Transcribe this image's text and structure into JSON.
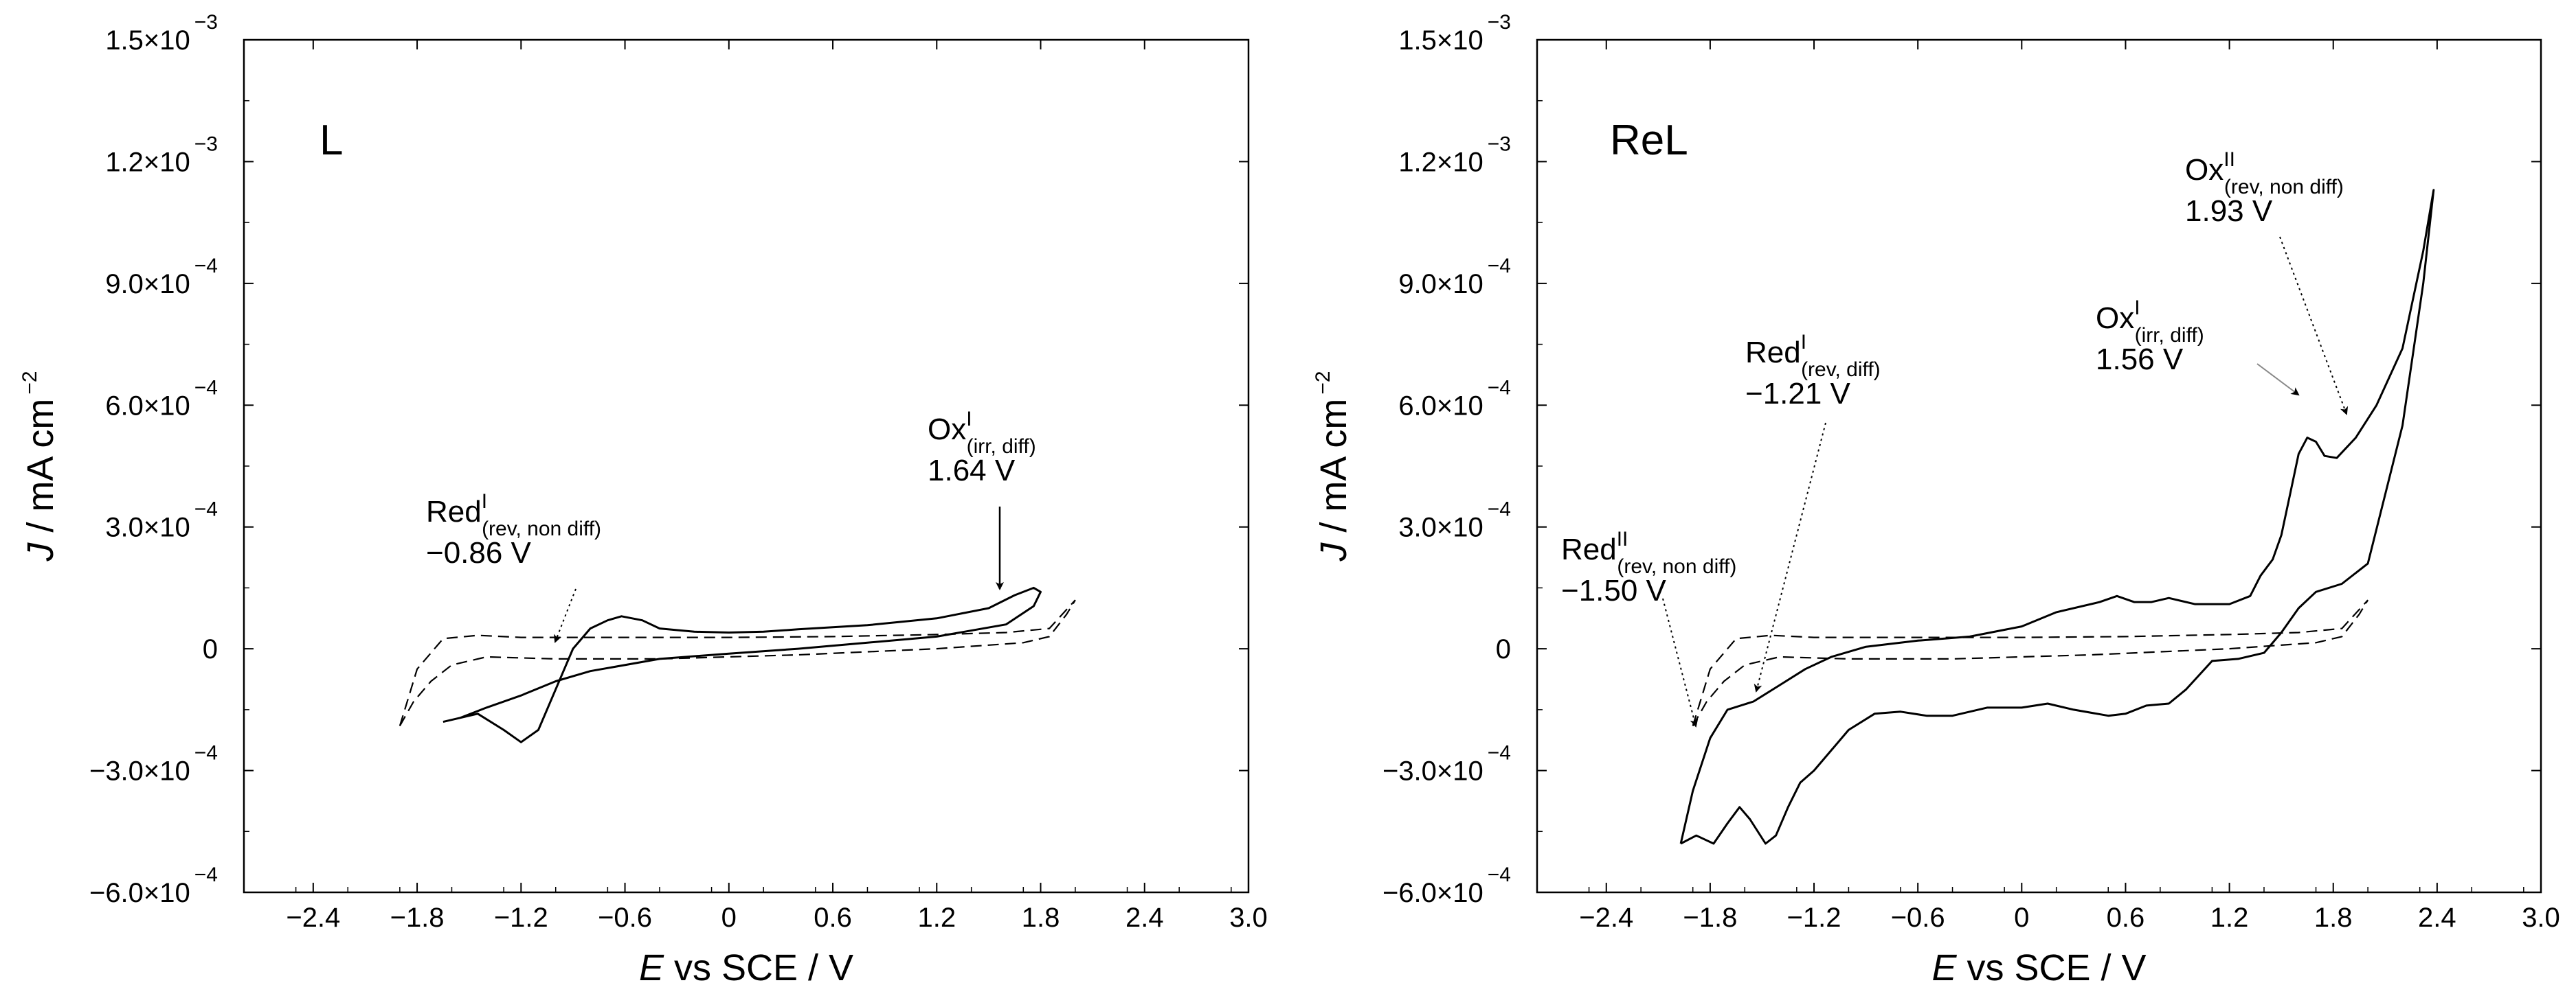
{
  "chart_data": [
    {
      "type": "line",
      "panel_label": "L",
      "xlabel": {
        "italic": "E",
        "rest": " vs SCE / V"
      },
      "ylabel": {
        "italic": "J",
        "rest": " / mA cm",
        "exp": "−2"
      },
      "xlim": [
        -2.8,
        3.0
      ],
      "ylim": [
        -0.0006,
        0.0015
      ],
      "xticks": [
        {
          "v": -2.4,
          "label": "−2.4"
        },
        {
          "v": -1.8,
          "label": "−1.8"
        },
        {
          "v": -1.2,
          "label": "−1.2"
        },
        {
          "v": -0.6,
          "label": "−0.6"
        },
        {
          "v": 0,
          "label": "0"
        },
        {
          "v": 0.6,
          "label": "0.6"
        },
        {
          "v": 1.2,
          "label": "1.2"
        },
        {
          "v": 1.8,
          "label": "1.8"
        },
        {
          "v": 2.4,
          "label": "2.4"
        },
        {
          "v": 3.0,
          "label": "3.0"
        }
      ],
      "yticks": [
        {
          "v": -0.0006,
          "mant": "−6.0×10",
          "exp": "−4"
        },
        {
          "v": -0.0003,
          "mant": "−3.0×10",
          "exp": "−4"
        },
        {
          "v": 0,
          "mant": "0",
          "exp": ""
        },
        {
          "v": 0.0003,
          "mant": "3.0×10",
          "exp": "−4"
        },
        {
          "v": 0.0006,
          "mant": "6.0×10",
          "exp": "−4"
        },
        {
          "v": 0.0009,
          "mant": "9.0×10",
          "exp": "−4"
        },
        {
          "v": 0.0012,
          "mant": "1.2×10",
          "exp": "−3"
        },
        {
          "v": 0.0015,
          "mant": "1.5×10",
          "exp": "−3"
        }
      ],
      "series": [
        {
          "name": "L (solid)",
          "style": "solid",
          "points": [
            [
              -1.65,
              -0.00018
            ],
            [
              -1.45,
              -0.00016
            ],
            [
              -1.3,
              -0.0002
            ],
            [
              -1.2,
              -0.00023
            ],
            [
              -1.1,
              -0.0002
            ],
            [
              -1.0,
              -0.0001
            ],
            [
              -0.9,
              0.0
            ],
            [
              -0.8,
              5e-05
            ],
            [
              -0.7,
              7e-05
            ],
            [
              -0.62,
              8e-05
            ],
            [
              -0.5,
              7e-05
            ],
            [
              -0.4,
              5e-05
            ],
            [
              -0.2,
              4.2e-05
            ],
            [
              0.0,
              4e-05
            ],
            [
              0.2,
              4.2e-05
            ],
            [
              0.4,
              4.8e-05
            ],
            [
              0.8,
              5.8e-05
            ],
            [
              1.2,
              7.5e-05
            ],
            [
              1.5,
              0.0001
            ],
            [
              1.65,
              0.000132
            ],
            [
              1.76,
              0.00015
            ],
            [
              1.8,
              0.00014
            ],
            [
              1.76,
              0.000105
            ],
            [
              1.6,
              6e-05
            ],
            [
              1.2,
              3e-05
            ],
            [
              0.8,
              1.5e-05
            ],
            [
              0.4,
              0.0
            ],
            [
              0.0,
              -1.2e-05
            ],
            [
              -0.4,
              -2.5e-05
            ],
            [
              -0.8,
              -5.5e-05
            ],
            [
              -1.0,
              -8e-05
            ],
            [
              -1.2,
              -0.000115
            ],
            [
              -1.4,
              -0.000145
            ],
            [
              -1.55,
              -0.00017
            ],
            [
              -1.65,
              -0.00018
            ]
          ]
        },
        {
          "name": "L (dashed, 1)",
          "style": "dashed",
          "points": [
            [
              -1.9,
              -0.00019
            ],
            [
              -1.82,
              -0.00013
            ],
            [
              -1.72,
              -8e-05
            ],
            [
              -1.6,
              -4e-05
            ],
            [
              -1.4,
              -2e-05
            ],
            [
              -1.0,
              -2.5e-05
            ],
            [
              -0.4,
              -2.5e-05
            ],
            [
              0.4,
              -1.5e-05
            ],
            [
              1.2,
              0.0
            ],
            [
              1.7,
              1.5e-05
            ],
            [
              1.85,
              3e-05
            ],
            [
              1.95,
              8.5e-05
            ],
            [
              2.0,
              0.00012
            ]
          ]
        },
        {
          "name": "L (dashed, 2)",
          "style": "dashed",
          "points": [
            [
              -1.9,
              -0.00019
            ],
            [
              -1.8,
              -5e-05
            ],
            [
              -1.65,
              2.5e-05
            ],
            [
              -1.45,
              3.3e-05
            ],
            [
              -1.2,
              2.8e-05
            ],
            [
              -0.6,
              2.8e-05
            ],
            [
              0.0,
              2.8e-05
            ],
            [
              0.6,
              3e-05
            ],
            [
              1.2,
              3.5e-05
            ],
            [
              1.6,
              4e-05
            ],
            [
              1.85,
              5e-05
            ],
            [
              2.0,
              0.00012
            ]
          ]
        }
      ],
      "annotations": [
        {
          "main": "Ox",
          "sup": "I",
          "sub": "(irr, diff)",
          "value": "1.64 V"
        },
        {
          "main": "Red",
          "sup": "I",
          "sub": "(rev, non diff)",
          "value": "−0.86 V"
        }
      ]
    },
    {
      "type": "line",
      "panel_label": "ReL",
      "xlabel": {
        "italic": "E",
        "rest": " vs SCE / V"
      },
      "ylabel": {
        "italic": "J",
        "rest": " / mA cm",
        "exp": "−2"
      },
      "xlim": [
        -2.8,
        3.0
      ],
      "ylim": [
        -0.0006,
        0.0015
      ],
      "xticks": [
        {
          "v": -2.4,
          "label": "−2.4"
        },
        {
          "v": -1.8,
          "label": "−1.8"
        },
        {
          "v": -1.2,
          "label": "−1.2"
        },
        {
          "v": -0.6,
          "label": "−0.6"
        },
        {
          "v": 0,
          "label": "0"
        },
        {
          "v": 0.6,
          "label": "0.6"
        },
        {
          "v": 1.2,
          "label": "1.2"
        },
        {
          "v": 1.8,
          "label": "1.8"
        },
        {
          "v": 2.4,
          "label": "2.4"
        },
        {
          "v": 3.0,
          "label": "3.0"
        }
      ],
      "yticks": [
        {
          "v": -0.0006,
          "mant": "−6.0×10",
          "exp": "−4"
        },
        {
          "v": -0.0003,
          "mant": "−3.0×10",
          "exp": "−4"
        },
        {
          "v": 0,
          "mant": "0",
          "exp": ""
        },
        {
          "v": 0.0003,
          "mant": "3.0×10",
          "exp": "−4"
        },
        {
          "v": 0.0006,
          "mant": "6.0×10",
          "exp": "−4"
        },
        {
          "v": 0.0009,
          "mant": "9.0×10",
          "exp": "−4"
        },
        {
          "v": 0.0012,
          "mant": "1.2×10",
          "exp": "−3"
        },
        {
          "v": 0.0015,
          "mant": "1.5×10",
          "exp": "−3"
        }
      ],
      "series": [
        {
          "name": "ReL (solid)",
          "style": "solid",
          "points": [
            [
              -1.97,
              -0.00048
            ],
            [
              -1.88,
              -0.00046
            ],
            [
              -1.78,
              -0.00048
            ],
            [
              -1.7,
              -0.00043
            ],
            [
              -1.63,
              -0.00039
            ],
            [
              -1.57,
              -0.00042
            ],
            [
              -1.48,
              -0.00048
            ],
            [
              -1.42,
              -0.00046
            ],
            [
              -1.35,
              -0.00039
            ],
            [
              -1.28,
              -0.00033
            ],
            [
              -1.2,
              -0.0003
            ],
            [
              -1.1,
              -0.00025
            ],
            [
              -1.0,
              -0.0002
            ],
            [
              -0.85,
              -0.00016
            ],
            [
              -0.7,
              -0.000155
            ],
            [
              -0.55,
              -0.000165
            ],
            [
              -0.4,
              -0.000165
            ],
            [
              -0.2,
              -0.000145
            ],
            [
              0.0,
              -0.000145
            ],
            [
              0.15,
              -0.000135
            ],
            [
              0.3,
              -0.00015
            ],
            [
              0.5,
              -0.000165
            ],
            [
              0.6,
              -0.00016
            ],
            [
              0.72,
              -0.00014
            ],
            [
              0.85,
              -0.000135
            ],
            [
              0.95,
              -0.0001
            ],
            [
              1.1,
              -3e-05
            ],
            [
              1.25,
              -2.5e-05
            ],
            [
              1.4,
              -1e-05
            ],
            [
              1.5,
              4e-05
            ],
            [
              1.6,
              0.0001
            ],
            [
              1.7,
              0.00014
            ],
            [
              1.85,
              0.00016
            ],
            [
              2.0,
              0.00021
            ],
            [
              2.2,
              0.00055
            ],
            [
              2.32,
              0.0009
            ],
            [
              2.38,
              0.00113
            ],
            [
              2.32,
              0.00098
            ],
            [
              2.2,
              0.00074
            ],
            [
              2.05,
              0.0006
            ],
            [
              1.93,
              0.00052
            ],
            [
              1.82,
              0.00047
            ],
            [
              1.75,
              0.000475
            ],
            [
              1.7,
              0.00051
            ],
            [
              1.65,
              0.00052
            ],
            [
              1.6,
              0.00048
            ],
            [
              1.55,
              0.00038
            ],
            [
              1.5,
              0.00028
            ],
            [
              1.45,
              0.00022
            ],
            [
              1.38,
              0.00018
            ],
            [
              1.32,
              0.00013
            ],
            [
              1.2,
              0.00011
            ],
            [
              1.0,
              0.00011
            ],
            [
              0.85,
              0.000125
            ],
            [
              0.75,
              0.000115
            ],
            [
              0.65,
              0.000115
            ],
            [
              0.55,
              0.00013
            ],
            [
              0.45,
              0.000115
            ],
            [
              0.2,
              9e-05
            ],
            [
              0.0,
              5.5e-05
            ],
            [
              -0.3,
              3e-05
            ],
            [
              -0.6,
              2e-05
            ],
            [
              -0.9,
              5e-06
            ],
            [
              -1.1,
              -2e-05
            ],
            [
              -1.25,
              -5e-05
            ],
            [
              -1.4,
              -9e-05
            ],
            [
              -1.55,
              -0.00013
            ],
            [
              -1.7,
              -0.00015
            ],
            [
              -1.8,
              -0.00022
            ],
            [
              -1.9,
              -0.00035
            ],
            [
              -1.97,
              -0.00048
            ]
          ]
        },
        {
          "name": "ReL (dashed, 1)",
          "style": "dashed",
          "points": [
            [
              -1.9,
              -0.00019
            ],
            [
              -1.82,
              -0.00013
            ],
            [
              -1.72,
              -8e-05
            ],
            [
              -1.6,
              -4e-05
            ],
            [
              -1.4,
              -2e-05
            ],
            [
              -1.0,
              -2.5e-05
            ],
            [
              -0.4,
              -2.5e-05
            ],
            [
              0.4,
              -1.5e-05
            ],
            [
              1.2,
              0.0
            ],
            [
              1.7,
              1.5e-05
            ],
            [
              1.85,
              3e-05
            ],
            [
              1.95,
              8.5e-05
            ],
            [
              2.0,
              0.00012
            ]
          ]
        },
        {
          "name": "ReL (dashed, 2)",
          "style": "dashed",
          "points": [
            [
              -1.9,
              -0.00019
            ],
            [
              -1.8,
              -5e-05
            ],
            [
              -1.65,
              2.5e-05
            ],
            [
              -1.45,
              3.3e-05
            ],
            [
              -1.2,
              2.8e-05
            ],
            [
              -0.6,
              2.8e-05
            ],
            [
              0.0,
              2.8e-05
            ],
            [
              0.6,
              3e-05
            ],
            [
              1.2,
              3.5e-05
            ],
            [
              1.6,
              4e-05
            ],
            [
              1.85,
              5e-05
            ],
            [
              2.0,
              0.00012
            ]
          ]
        }
      ],
      "annotations": [
        {
          "main": "Ox",
          "sup": "II",
          "sub": "(rev, non diff)",
          "value": "1.93 V"
        },
        {
          "main": "Ox",
          "sup": "I",
          "sub": "(irr, diff)",
          "value": "1.56 V"
        },
        {
          "main": "Red",
          "sup": "I",
          "sub": "(rev, diff)",
          "value": "−1.21 V"
        },
        {
          "main": "Red",
          "sup": "II",
          "sub": "(rev, non diff)",
          "value": "−1.50 V"
        }
      ]
    }
  ]
}
